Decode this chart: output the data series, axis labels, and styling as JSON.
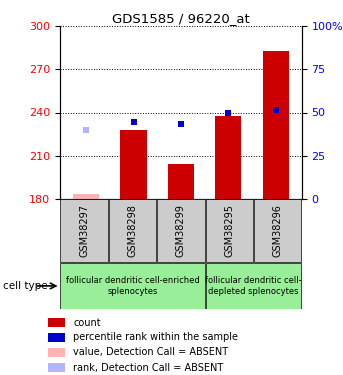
{
  "title": "GDS1585 / 96220_at",
  "samples": [
    "GSM38297",
    "GSM38298",
    "GSM38299",
    "GSM38295",
    "GSM38296"
  ],
  "bar_values": [
    183.5,
    228.0,
    204.5,
    237.5,
    283.0
  ],
  "bar_absent": [
    true,
    false,
    false,
    false,
    false
  ],
  "rank_values": [
    228.0,
    233.5,
    232.0,
    240.0,
    242.0
  ],
  "rank_absent": [
    true,
    false,
    false,
    false,
    false
  ],
  "ylim_left": [
    180,
    300
  ],
  "ylim_right": [
    0,
    100
  ],
  "yticks_left": [
    180,
    210,
    240,
    270,
    300
  ],
  "yticks_right": [
    0,
    25,
    50,
    75,
    100
  ],
  "bar_color_normal": "#cc0000",
  "bar_color_absent": "#ffb3b3",
  "rank_color_normal": "#0000cc",
  "rank_color_absent": "#b3b3ff",
  "group_color": "#99ee99",
  "sample_box_color": "#cccccc",
  "legend_items": [
    {
      "color": "#cc0000",
      "label": "count"
    },
    {
      "color": "#0000cc",
      "label": "percentile rank within the sample"
    },
    {
      "color": "#ffb3b3",
      "label": "value, Detection Call = ABSENT"
    },
    {
      "color": "#b3b3ff",
      "label": "rank, Detection Call = ABSENT"
    }
  ],
  "cell_type_label": "cell type",
  "bar_width": 0.55,
  "group_boundaries": [
    {
      "start": 0,
      "end": 2,
      "label": "follicular dendritic cell-enriched\nsplenocytes"
    },
    {
      "start": 3,
      "end": 4,
      "label": "follicular dendritic cell-\ndepleted splenocytes"
    }
  ]
}
